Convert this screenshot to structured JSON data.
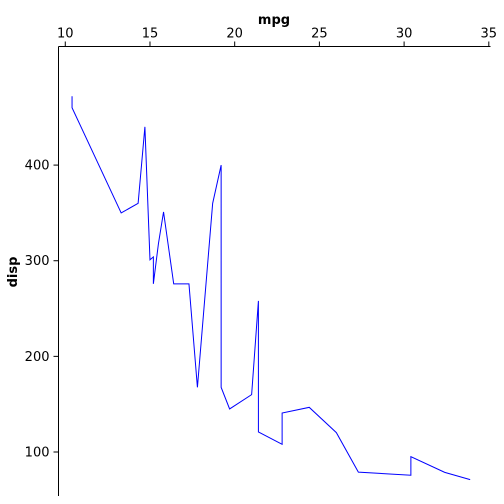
{
  "chart_data": {
    "type": "line",
    "title": "",
    "xlabel": "mpg",
    "ylabel": "disp",
    "x_axis_position": "top",
    "xlim": [
      9.6,
      35.1
    ],
    "ylim": [
      54,
      524
    ],
    "x_ticks": [
      10,
      15,
      20,
      25,
      30,
      35
    ],
    "y_ticks": [
      100,
      200,
      300,
      400
    ],
    "grid": false,
    "legend": "none",
    "line_color": "#0000ff",
    "series": [
      {
        "x": [
          10.4,
          10.4,
          13.3,
          14.3,
          14.7,
          15.0,
          15.2,
          15.2,
          15.5,
          15.8,
          16.4,
          17.3,
          17.8,
          18.7,
          19.2,
          19.2,
          19.7,
          21.0,
          21.4,
          21.4,
          22.8,
          22.8,
          24.4,
          26.0,
          27.3,
          30.4,
          30.4,
          32.4,
          33.9
        ],
        "y": [
          472,
          460,
          350,
          360,
          440,
          301,
          304,
          275.8,
          318,
          351,
          275.8,
          275.8,
          167.6,
          360,
          400,
          167.6,
          145,
          160,
          258,
          121,
          108,
          140.8,
          146.7,
          120.3,
          79,
          75.7,
          95.1,
          78.7,
          71.1
        ]
      }
    ]
  }
}
